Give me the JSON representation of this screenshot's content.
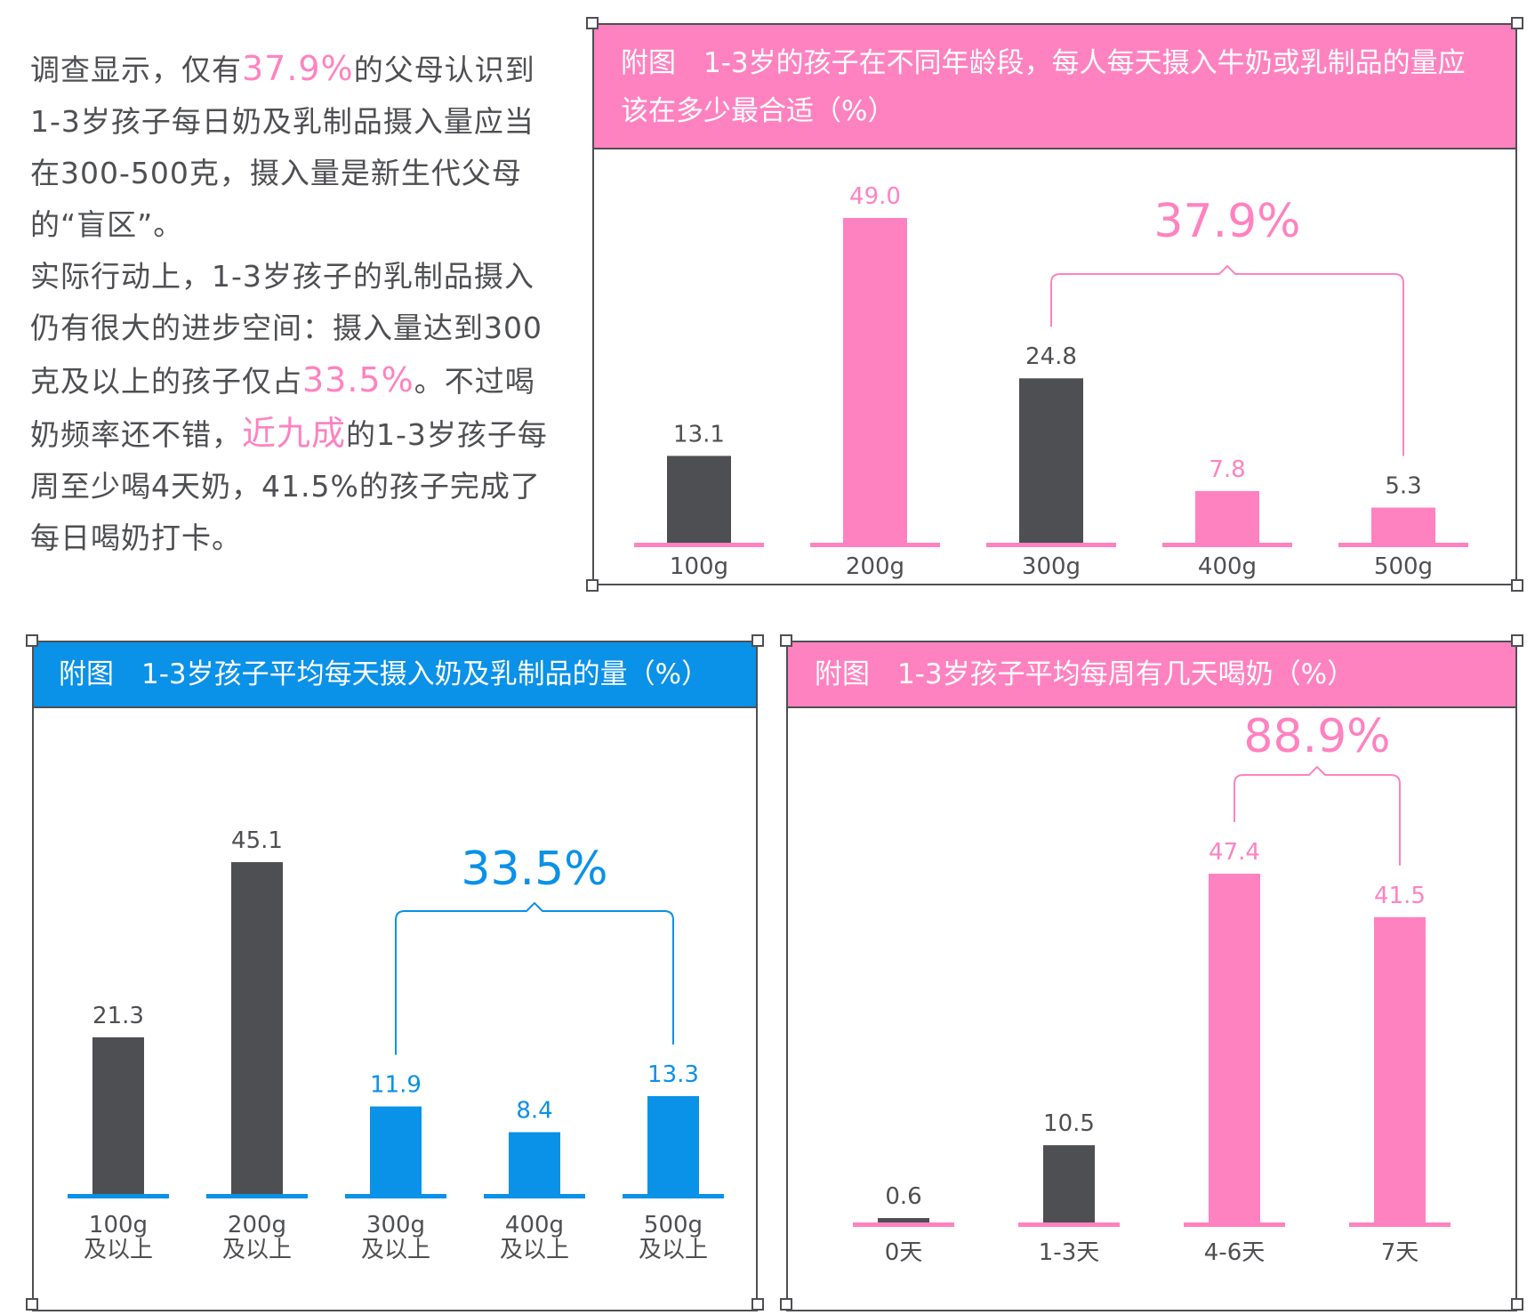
{
  "colors": {
    "pink": "#ff82c0",
    "blue": "#0a91e8",
    "dark": "#4e4f52",
    "text": "#4e4f52"
  },
  "intro": {
    "p1_a": "调查显示，仅有",
    "p1_hl": "37.9%",
    "p1_b": "的父母认识到1-3岁孩子每日奶及乳制品摄入量应当在300-500克，摄入量是新生代父母的“盲区”。",
    "p2_a": "实际行动上，1-3岁孩子的乳制品摄入仍有很大的进步空间：摄入量达到300克及以上的孩子仅占",
    "p2_hl1": "33.5%",
    "p2_b": "。不过喝奶频率还不错，",
    "p2_hl2": "近九成",
    "p2_c": "的1-3岁孩子每周至少喝4天奶，41.5%的孩子完成了每日喝奶打卡。"
  },
  "chart_data": [
    {
      "type": "bar",
      "title": "附图　1-3岁的孩子在不同年龄段，每人每天摄入牛奶或乳制品的量应该在多少最合适（%）",
      "categories": [
        "100g",
        "200g",
        "300g",
        "400g",
        "500g"
      ],
      "values": [
        13.1,
        49.0,
        24.8,
        7.8,
        5.3
      ],
      "value_labels": [
        "13.1",
        "49.0",
        "24.8",
        "7.8",
        "5.3"
      ],
      "bar_colors": [
        "dark",
        "pink",
        "dark",
        "pink",
        "pink"
      ],
      "label_colors": [
        "dark",
        "pink",
        "dark",
        "pink",
        "dark"
      ],
      "ylim": [
        0,
        55
      ],
      "bracket": {
        "from_index": 2,
        "to_index": 4,
        "label": "37.9%",
        "color": "pink"
      }
    },
    {
      "type": "bar",
      "title": "附图　1-3岁孩子平均每天摄入奶及乳制品的量（%）",
      "categories": [
        "100g\n及以上",
        "200g\n及以上",
        "300g\n及以上",
        "400g\n及以上",
        "500g\n及以上"
      ],
      "values": [
        21.3,
        45.1,
        11.9,
        8.4,
        13.3
      ],
      "value_labels": [
        "21.3",
        "45.1",
        "11.9",
        "8.4",
        "13.3"
      ],
      "bar_colors": [
        "dark",
        "dark",
        "blue",
        "blue",
        "blue"
      ],
      "label_colors": [
        "dark",
        "dark",
        "blue",
        "blue",
        "blue"
      ],
      "ylim": [
        0,
        55
      ],
      "bracket": {
        "from_index": 2,
        "to_index": 4,
        "label": "33.5%",
        "color": "blue"
      }
    },
    {
      "type": "bar",
      "title": "附图　1-3岁孩子平均每周有几天喝奶（%）",
      "categories": [
        "0天",
        "1-3天",
        "4-6天",
        "7天"
      ],
      "values": [
        0.6,
        10.5,
        47.4,
        41.5
      ],
      "value_labels": [
        "0.6",
        "10.5",
        "47.4",
        "41.5"
      ],
      "bar_colors": [
        "dark",
        "dark",
        "pink",
        "pink"
      ],
      "label_colors": [
        "dark",
        "dark",
        "pink",
        "pink"
      ],
      "ylim": [
        0,
        55
      ],
      "bracket": {
        "from_index": 2,
        "to_index": 3,
        "label": "88.9%",
        "color": "pink"
      }
    }
  ]
}
